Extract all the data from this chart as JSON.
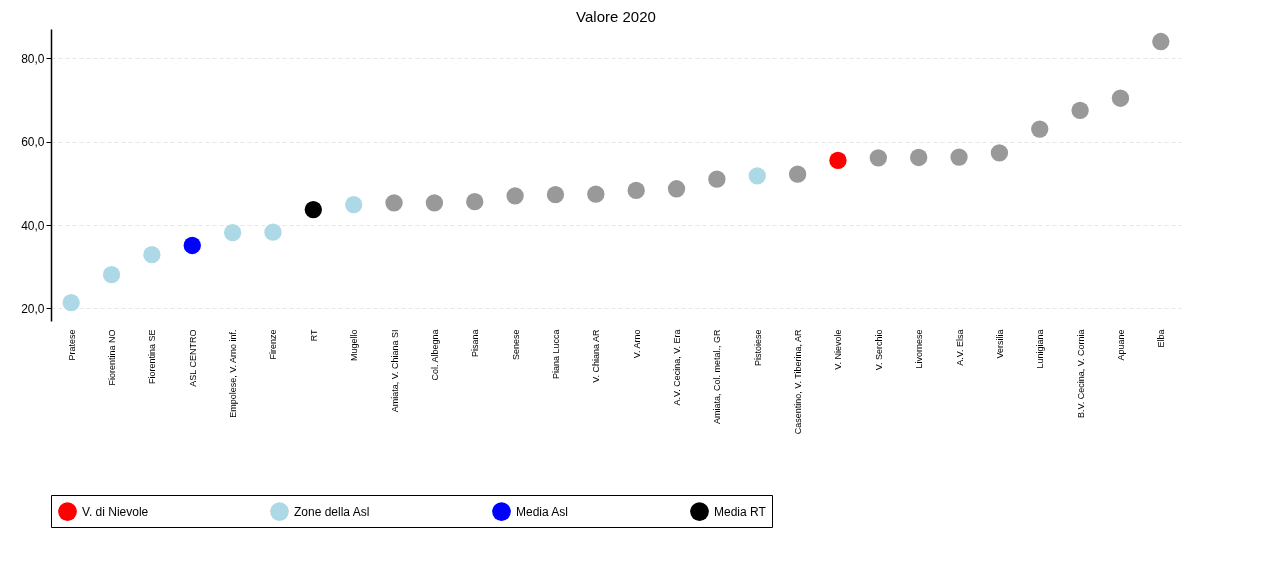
{
  "chart_data": {
    "type": "scatter",
    "title": "Valore 2020",
    "categories": [
      "Pratese",
      "Fiorentina NO",
      "Fiorentina SE",
      "ASL CENTRO",
      "Empolese, V. Arno inf.",
      "Firenze",
      "RT",
      "Mugello",
      "Amiata, V. Chiana SI",
      "Col. Albegna",
      "Pisana",
      "Senese",
      "Piana Lucca",
      "V. Chiana AR",
      "V. Arno",
      "A.V. Cecina, V. Era",
      "Amiata, Col. metal., GR",
      "Pistoiese",
      "Casentino, V. Tiberina, AR",
      "V. Nievole",
      "V. Serchio",
      "Livornese",
      "A.V. Elsa",
      "Versilia",
      "Lunigiana",
      "B.V. Cecina, V. Cornia",
      "Apuane",
      "Elba"
    ],
    "series": [
      {
        "name": "V. di Nievole",
        "color": "#ff0000",
        "values": [
          null,
          null,
          null,
          null,
          null,
          null,
          null,
          null,
          null,
          null,
          null,
          null,
          null,
          null,
          null,
          null,
          null,
          null,
          null,
          55.5,
          null,
          null,
          null,
          null,
          null,
          null,
          null,
          null
        ]
      },
      {
        "name": "Zone della Asl",
        "color": "#add8e6",
        "values": [
          21.4,
          28.1,
          32.9,
          null,
          38.2,
          38.3,
          null,
          44.9,
          null,
          null,
          null,
          null,
          null,
          null,
          null,
          null,
          null,
          51.8,
          null,
          null,
          null,
          null,
          null,
          null,
          null,
          null,
          null,
          null
        ]
      },
      {
        "name": "Media Asl",
        "color": "#0000ff",
        "values": [
          null,
          null,
          null,
          35.1,
          null,
          null,
          null,
          null,
          null,
          null,
          null,
          null,
          null,
          null,
          null,
          null,
          null,
          null,
          null,
          null,
          null,
          null,
          null,
          null,
          null,
          null,
          null,
          null
        ]
      },
      {
        "name": "Media RT",
        "color": "#000000",
        "values": [
          null,
          null,
          null,
          null,
          null,
          null,
          43.7,
          null,
          null,
          null,
          null,
          null,
          null,
          null,
          null,
          null,
          null,
          null,
          null,
          null,
          null,
          null,
          null,
          null,
          null,
          null,
          null,
          null
        ]
      },
      {
        "color": "#999999",
        "values": [
          null,
          null,
          null,
          null,
          null,
          null,
          null,
          null,
          45.3,
          45.3,
          45.6,
          47.0,
          47.3,
          47.4,
          48.3,
          48.7,
          51.0,
          null,
          52.2,
          null,
          56.1,
          56.2,
          56.3,
          57.3,
          63.0,
          67.5,
          70.4,
          84.0
        ]
      }
    ],
    "ylim": [
      17,
      87
    ],
    "yticks": [
      {
        "value": 20,
        "label": "20,0"
      },
      {
        "value": 40,
        "label": "40,0"
      },
      {
        "value": 60,
        "label": "60,0"
      },
      {
        "value": 80,
        "label": "80,0"
      }
    ],
    "grid": "y",
    "legend": "bottom",
    "marker": "circle"
  }
}
